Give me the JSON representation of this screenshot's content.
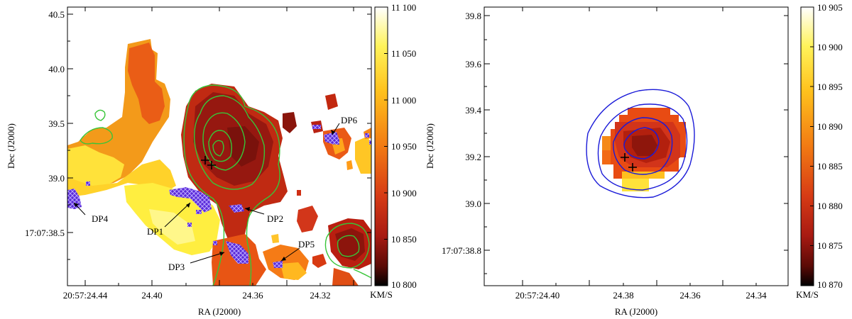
{
  "left_panel": {
    "y_ticks": [
      "40.5",
      "40.0",
      "39.5",
      "39.0",
      "17:07:38.5"
    ],
    "x_ticks": [
      "20:57:24.44",
      "24.40",
      "24.36",
      "24.32"
    ],
    "xlabel": "RA (J2000)",
    "ylabel": "Dec (J2000)",
    "colorbar": {
      "ticks": [
        "11 100",
        "11 050",
        "11 000",
        "10 950",
        "10 900",
        "10 850",
        "10 800"
      ],
      "unit": "KM/S"
    },
    "annotations": [
      "DP6",
      "DP4",
      "DP2",
      "DP1",
      "DP5",
      "DP3"
    ]
  },
  "right_panel": {
    "y_ticks": [
      "39.8",
      "39.6",
      "39.4",
      "39.2",
      "39.0",
      "17:07:38.8"
    ],
    "x_ticks": [
      "20:57:24.40",
      "24.38",
      "24.36",
      "24.34"
    ],
    "xlabel": "RA (J2000)",
    "ylabel": "Dec (J2000)",
    "colorbar": {
      "ticks": [
        "10 905",
        "10 900",
        "10 895",
        "10 890",
        "10 885",
        "10 880",
        "10 875",
        "10 870"
      ],
      "unit": "KM/S"
    }
  },
  "colors": {
    "colormap": [
      "#ffffff",
      "#fff35a",
      "#ffc21d",
      "#f27a13",
      "#d63a15",
      "#a81a12",
      "#5a0a06",
      "#000000"
    ],
    "green_contour": "#38c538",
    "blue_contour": "#1a1ad8",
    "marker": "#5a2ad8"
  }
}
